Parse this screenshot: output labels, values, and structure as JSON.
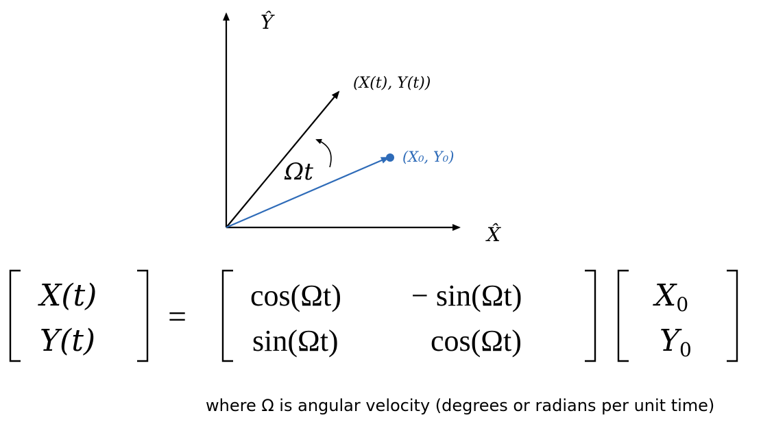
{
  "axes": {
    "y_label": "Ŷ",
    "x_label": "X̂"
  },
  "vectors": {
    "rotated_label": "(X(t), Y(t))",
    "initial_label": "(X₀, Y₀)",
    "angle_label": "Ωt"
  },
  "equation": {
    "lhs": [
      "X(t)",
      "Y(t)"
    ],
    "equals": "=",
    "matrix": [
      [
        "cos(Ωt)",
        "− sin(Ωt)"
      ],
      [
        "sin(Ωt)",
        "cos(Ωt)"
      ]
    ],
    "rhs": [
      "X",
      "Y"
    ],
    "rhs_subscript": "0"
  },
  "caption": "where Ω is angular velocity  (degrees or radians per unit time)",
  "colors": {
    "axis": "#000000",
    "rotated_vector": "#000000",
    "initial_vector": "#2e6bb8"
  }
}
